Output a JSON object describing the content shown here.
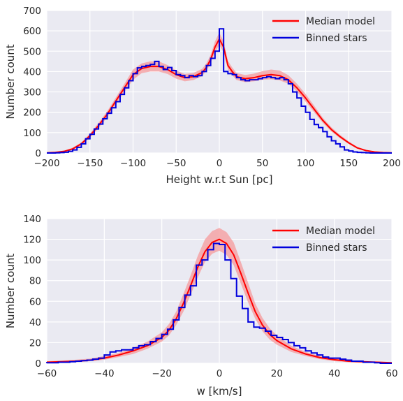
{
  "chart_data": [
    {
      "type": "line",
      "title": "",
      "xlabel": "Height w.r.t Sun  [pc]",
      "ylabel": "Number count",
      "xlim": [
        -200,
        200
      ],
      "ylim": [
        0,
        700
      ],
      "xticks": [
        "−200",
        "−150",
        "−100",
        "−50",
        "0",
        "50",
        "100",
        "150",
        "200"
      ],
      "yticks": [
        "0",
        "100",
        "200",
        "300",
        "400",
        "500",
        "600",
        "700"
      ],
      "grid": true,
      "legend": "top-right",
      "colors": {
        "model": "#ff0000",
        "band": "#f4a3a6",
        "stars": "#0000dd",
        "bg": "#eaeaf2"
      },
      "series": [
        {
          "name": "Median model",
          "x": [
            -200,
            -190,
            -180,
            -170,
            -160,
            -150,
            -140,
            -130,
            -120,
            -110,
            -100,
            -90,
            -80,
            -70,
            -60,
            -50,
            -40,
            -30,
            -20,
            -15,
            -10,
            -5,
            0,
            5,
            10,
            15,
            20,
            30,
            40,
            50,
            60,
            70,
            80,
            90,
            100,
            110,
            120,
            130,
            140,
            150,
            160,
            170,
            180,
            190,
            200
          ],
          "values": [
            1,
            3,
            8,
            20,
            45,
            85,
            135,
            190,
            255,
            320,
            385,
            415,
            425,
            425,
            410,
            385,
            370,
            375,
            395,
            420,
            460,
            520,
            560,
            520,
            430,
            400,
            375,
            365,
            370,
            380,
            385,
            380,
            360,
            320,
            270,
            215,
            160,
            115,
            80,
            50,
            25,
            12,
            5,
            2,
            1
          ]
        },
        {
          "name": "Median model band",
          "x": [
            -200,
            -190,
            -180,
            -170,
            -160,
            -150,
            -140,
            -130,
            -120,
            -110,
            -100,
            -90,
            -80,
            -70,
            -60,
            -50,
            -40,
            -30,
            -20,
            -15,
            -10,
            -5,
            0,
            5,
            10,
            15,
            20,
            30,
            40,
            50,
            60,
            70,
            80,
            90,
            100,
            110,
            120,
            130,
            140,
            150,
            160,
            170,
            180,
            190,
            200
          ],
          "low": [
            0,
            2,
            6,
            15,
            38,
            75,
            122,
            175,
            238,
            300,
            360,
            392,
            400,
            400,
            388,
            365,
            352,
            358,
            378,
            403,
            440,
            495,
            530,
            495,
            410,
            382,
            358,
            348,
            352,
            360,
            362,
            357,
            340,
            302,
            252,
            200,
            148,
            105,
            72,
            44,
            21,
            10,
            4,
            1,
            0
          ],
          "high": [
            2,
            5,
            11,
            26,
            52,
            95,
            148,
            205,
            272,
            340,
            410,
            440,
            450,
            450,
            432,
            405,
            388,
            393,
            413,
            440,
            482,
            548,
            592,
            548,
            452,
            420,
            393,
            383,
            390,
            402,
            410,
            405,
            382,
            340,
            290,
            232,
            173,
            126,
            89,
            57,
            30,
            15,
            7,
            3,
            2
          ]
        },
        {
          "name": "Binned stars",
          "x": [
            -200,
            -195,
            -190,
            -185,
            -180,
            -175,
            -170,
            -165,
            -160,
            -155,
            -150,
            -145,
            -140,
            -135,
            -130,
            -125,
            -120,
            -115,
            -110,
            -105,
            -100,
            -95,
            -90,
            -85,
            -80,
            -75,
            -70,
            -65,
            -60,
            -55,
            -50,
            -45,
            -40,
            -35,
            -30,
            -25,
            -20,
            -15,
            -10,
            -5,
            0,
            5,
            10,
            15,
            20,
            25,
            30,
            35,
            40,
            45,
            50,
            55,
            60,
            65,
            70,
            75,
            80,
            85,
            90,
            95,
            100,
            105,
            110,
            115,
            120,
            125,
            130,
            135,
            140,
            145,
            150,
            155,
            160,
            165,
            170,
            175,
            180,
            185,
            190,
            195
          ],
          "values": [
            0,
            0,
            1,
            2,
            4,
            8,
            15,
            28,
            45,
            70,
            92,
            118,
            142,
            168,
            195,
            222,
            252,
            288,
            320,
            355,
            390,
            418,
            425,
            430,
            435,
            450,
            425,
            410,
            420,
            405,
            385,
            380,
            370,
            380,
            375,
            380,
            400,
            430,
            465,
            500,
            610,
            400,
            390,
            385,
            370,
            360,
            355,
            360,
            360,
            365,
            370,
            375,
            370,
            365,
            370,
            360,
            340,
            300,
            270,
            230,
            200,
            165,
            140,
            125,
            105,
            80,
            60,
            45,
            30,
            15,
            10,
            5,
            3,
            2,
            1,
            0,
            0,
            0,
            0,
            0
          ]
        }
      ]
    },
    {
      "type": "line",
      "title": "",
      "xlabel": "w  [km/s]",
      "ylabel": "Number count",
      "xlim": [
        -60,
        60
      ],
      "ylim": [
        0,
        140
      ],
      "xticks": [
        "−60",
        "−40",
        "−20",
        "0",
        "20",
        "40",
        "60"
      ],
      "yticks": [
        "0",
        "20",
        "40",
        "60",
        "80",
        "100",
        "120",
        "140"
      ],
      "grid": true,
      "legend": "top-right",
      "colors": {
        "model": "#ff0000",
        "band": "#f4a3a6",
        "stars": "#0000dd",
        "bg": "#eaeaf2"
      },
      "series": [
        {
          "name": "Median model",
          "x": [
            -60,
            -55,
            -50,
            -45,
            -40,
            -35,
            -30,
            -25,
            -20,
            -17.5,
            -15,
            -12.5,
            -10,
            -7.5,
            -5,
            -2.5,
            0,
            2.5,
            5,
            7.5,
            10,
            12.5,
            15,
            17.5,
            20,
            25,
            30,
            35,
            40,
            45,
            50,
            55,
            60
          ],
          "values": [
            1,
            1.5,
            2,
            3,
            5,
            8,
            12,
            17,
            25,
            32,
            43,
            58,
            75,
            93,
            108,
            117,
            120,
            116,
            105,
            87,
            68,
            50,
            37,
            28,
            22,
            14,
            9,
            5.5,
            3.5,
            2,
            1.5,
            1,
            0.5
          ]
        },
        {
          "name": "Median model band",
          "x": [
            -60,
            -55,
            -50,
            -45,
            -40,
            -35,
            -30,
            -25,
            -20,
            -17.5,
            -15,
            -12.5,
            -10,
            -7.5,
            -5,
            -2.5,
            0,
            2.5,
            5,
            7.5,
            10,
            12.5,
            15,
            17.5,
            20,
            25,
            30,
            35,
            40,
            45,
            50,
            55,
            60
          ],
          "low": [
            0,
            0.5,
            1,
            2,
            3.5,
            6,
            9,
            14,
            21,
            27,
            37,
            50,
            66,
            83,
            98,
            106,
            109,
            105,
            95,
            77,
            59,
            43,
            31,
            23,
            18,
            11,
            7,
            4,
            2,
            1,
            0.5,
            0.3,
            0
          ],
          "high": [
            2,
            2.5,
            3.5,
            4.5,
            7,
            10,
            15,
            21,
            30,
            38,
            50,
            67,
            85,
            104,
            120,
            128,
            131,
            127,
            117,
            98,
            78,
            58,
            44,
            34,
            27,
            17,
            11,
            7,
            5,
            3,
            2,
            1.5,
            1
          ]
        },
        {
          "name": "Binned stars",
          "x": [
            -60,
            -58,
            -56,
            -54,
            -52,
            -50,
            -48,
            -46,
            -44,
            -42,
            -40,
            -38,
            -36,
            -34,
            -32,
            -30,
            -28,
            -26,
            -24,
            -22,
            -20,
            -18,
            -16,
            -14,
            -12,
            -10,
            -8,
            -6,
            -4,
            -2,
            0,
            2,
            4,
            6,
            8,
            10,
            12,
            14,
            16,
            18,
            20,
            22,
            24,
            26,
            28,
            30,
            32,
            34,
            36,
            38,
            40,
            42,
            44,
            46,
            48,
            50,
            52,
            54,
            56,
            58
          ],
          "values": [
            0.5,
            0.5,
            1,
            1,
            1.5,
            2,
            2.5,
            3,
            4,
            5,
            8,
            11,
            12,
            13,
            13,
            15,
            17,
            18,
            21,
            24,
            28,
            33,
            42,
            54,
            66,
            75,
            95,
            100,
            110,
            116,
            115,
            100,
            82,
            65,
            53,
            40,
            35,
            34,
            31,
            27,
            25,
            23,
            20,
            17,
            15,
            12,
            10,
            8,
            6,
            5,
            5,
            4,
            3,
            2,
            2,
            1,
            1,
            0.5,
            0,
            0
          ]
        }
      ]
    }
  ]
}
